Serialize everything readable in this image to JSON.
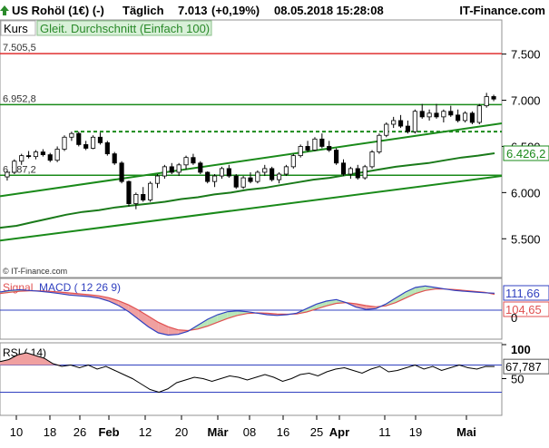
{
  "header": {
    "arrow_color": "#2a8a2a",
    "instrument": "US Rohöl (1€) (-)",
    "interval": "Täglich",
    "price": "7.013",
    "change": "(+0,19%)",
    "datetime": "08.05.2018 15:28:08",
    "brand": "IT-Finance.com"
  },
  "legend": {
    "kurs": "Kurs",
    "ma": "Gleit. Durchschnitt (Einfach 100)"
  },
  "watermark": "© IT-Finance.com",
  "price_labels": {
    "resistance": "7.505,5",
    "level_mid": "6.952,8",
    "level_low": "6.187,2"
  },
  "macd_legend": {
    "signal": "Signal",
    "macd": "MACD ( 12 26 9)"
  },
  "rsi_legend": "RSI ( 14)",
  "chart_data": [
    {
      "type": "candlestick",
      "title": "US Rohöl (1€) (-) Täglich",
      "y_axis_ticks": [
        "7.500",
        "7.000",
        "6.500",
        "6.000",
        "5.500"
      ],
      "y_range": [
        5100,
        7850
      ],
      "x_tick_labels": [
        "10",
        "18",
        "26",
        "Feb",
        "12",
        "20",
        "Mär",
        "08",
        "16",
        "25",
        "Apr",
        "11",
        "19",
        "Mai"
      ],
      "horizontal_levels": [
        {
          "value": 7505.5,
          "label": "7.505,5",
          "color": "#e03030"
        },
        {
          "value": 6952.8,
          "label": "6.952,8",
          "color": "#1a8a1a"
        },
        {
          "value": 6187.2,
          "label": "6.187,2",
          "color": "#1a8a1a"
        },
        {
          "value": 6660,
          "style": "dashed",
          "color": "#1a8a1a"
        }
      ],
      "trendlines": [
        {
          "from": 5960,
          "to": 6750,
          "color": "#1a8a1a"
        },
        {
          "from": 5480,
          "to": 6180,
          "color": "#1a8a1a"
        }
      ],
      "moving_average": {
        "name": "Gleit. Durchschnitt (Einfach 100)",
        "last_value": "6.426,2",
        "values": [
          5620,
          5640,
          5680,
          5720,
          5760,
          5790,
          5810,
          5840,
          5860,
          5880,
          5900,
          5930,
          5950,
          5980,
          6000,
          6030,
          6050,
          6080,
          6110,
          6140,
          6160,
          6190,
          6220,
          6250,
          6280,
          6300,
          6320,
          6350,
          6380,
          6400,
          6426
        ]
      },
      "candles": [
        [
          6170,
          6240,
          6130,
          6220
        ],
        [
          6220,
          6360,
          6200,
          6340
        ],
        [
          6340,
          6420,
          6300,
          6400
        ],
        [
          6400,
          6450,
          6370,
          6390
        ],
        [
          6390,
          6460,
          6360,
          6440
        ],
        [
          6440,
          6470,
          6390,
          6410
        ],
        [
          6410,
          6430,
          6330,
          6350
        ],
        [
          6350,
          6500,
          6330,
          6470
        ],
        [
          6470,
          6620,
          6450,
          6600
        ],
        [
          6600,
          6660,
          6560,
          6640
        ],
        [
          6640,
          6660,
          6500,
          6520
        ],
        [
          6520,
          6560,
          6460,
          6480
        ],
        [
          6480,
          6620,
          6470,
          6600
        ],
        [
          6600,
          6650,
          6520,
          6540
        ],
        [
          6540,
          6560,
          6400,
          6420
        ],
        [
          6420,
          6440,
          6300,
          6320
        ],
        [
          6320,
          6340,
          6100,
          6120
        ],
        [
          6120,
          6130,
          5850,
          5880
        ],
        [
          5880,
          6000,
          5820,
          5980
        ],
        [
          5980,
          6060,
          5900,
          5920
        ],
        [
          5920,
          6120,
          5900,
          6100
        ],
        [
          6100,
          6200,
          6050,
          6180
        ],
        [
          6180,
          6300,
          6150,
          6280
        ],
        [
          6280,
          6320,
          6200,
          6220
        ],
        [
          6220,
          6320,
          6180,
          6300
        ],
        [
          6300,
          6400,
          6250,
          6380
        ],
        [
          6380,
          6420,
          6300,
          6320
        ],
        [
          6320,
          6340,
          6200,
          6220
        ],
        [
          6220,
          6230,
          6100,
          6120
        ],
        [
          6120,
          6200,
          6060,
          6180
        ],
        [
          6180,
          6280,
          6150,
          6260
        ],
        [
          6260,
          6300,
          6160,
          6180
        ],
        [
          6180,
          6200,
          6040,
          6060
        ],
        [
          6060,
          6180,
          6040,
          6160
        ],
        [
          6160,
          6220,
          6100,
          6120
        ],
        [
          6120,
          6240,
          6100,
          6220
        ],
        [
          6220,
          6300,
          6180,
          6260
        ],
        [
          6260,
          6280,
          6120,
          6140
        ],
        [
          6140,
          6220,
          6100,
          6200
        ],
        [
          6200,
          6300,
          6180,
          6280
        ],
        [
          6280,
          6420,
          6260,
          6400
        ],
        [
          6400,
          6520,
          6380,
          6500
        ],
        [
          6500,
          6560,
          6440,
          6460
        ],
        [
          6460,
          6600,
          6450,
          6580
        ],
        [
          6580,
          6640,
          6480,
          6500
        ],
        [
          6500,
          6560,
          6440,
          6460
        ],
        [
          6460,
          6480,
          6300,
          6320
        ],
        [
          6320,
          6360,
          6180,
          6200
        ],
        [
          6200,
          6280,
          6150,
          6260
        ],
        [
          6260,
          6300,
          6140,
          6160
        ],
        [
          6160,
          6300,
          6140,
          6280
        ],
        [
          6280,
          6460,
          6260,
          6440
        ],
        [
          6440,
          6640,
          6420,
          6620
        ],
        [
          6620,
          6760,
          6600,
          6740
        ],
        [
          6740,
          6820,
          6700,
          6780
        ],
        [
          6780,
          6840,
          6700,
          6720
        ],
        [
          6720,
          6780,
          6640,
          6660
        ],
        [
          6660,
          6900,
          6640,
          6880
        ],
        [
          6880,
          6960,
          6800,
          6820
        ],
        [
          6820,
          6900,
          6780,
          6860
        ],
        [
          6860,
          6960,
          6800,
          6820
        ],
        [
          6820,
          6900,
          6760,
          6880
        ],
        [
          6880,
          6940,
          6820,
          6840
        ],
        [
          6840,
          6900,
          6760,
          6780
        ],
        [
          6780,
          6880,
          6760,
          6860
        ],
        [
          6860,
          6880,
          6740,
          6760
        ],
        [
          6760,
          6960,
          6740,
          6940
        ],
        [
          6940,
          7080,
          6920,
          7040
        ],
        [
          7040,
          7060,
          6990,
          7013
        ]
      ]
    },
    {
      "type": "line",
      "name": "MACD",
      "labels": [
        "Signal",
        "MACD ( 12 26 9)"
      ],
      "axis_labels": [
        "111,66",
        "104,65",
        "0"
      ],
      "macd": [
        120,
        130,
        135,
        130,
        125,
        118,
        110,
        100,
        95,
        90,
        80,
        60,
        30,
        -10,
        -60,
        -110,
        -150,
        -165,
        -160,
        -140,
        -100,
        -60,
        -30,
        -10,
        -5,
        -10,
        -20,
        -30,
        -35,
        -30,
        -20,
        10,
        40,
        60,
        70,
        50,
        20,
        5,
        10,
        40,
        80,
        120,
        150,
        160,
        150,
        140,
        130,
        125,
        120,
        115,
        112
      ],
      "signal": [
        110,
        118,
        125,
        128,
        128,
        125,
        120,
        114,
        108,
        102,
        95,
        82,
        62,
        35,
        0,
        -40,
        -80,
        -110,
        -130,
        -135,
        -125,
        -105,
        -80,
        -55,
        -35,
        -22,
        -18,
        -20,
        -25,
        -27,
        -25,
        -12,
        8,
        28,
        45,
        50,
        42,
        30,
        22,
        28,
        50,
        80,
        110,
        130,
        140,
        140,
        136,
        130,
        124,
        118,
        105
      ]
    },
    {
      "type": "line",
      "name": "RSI ( 14)",
      "y_axis_ticks": [
        "100",
        "50"
      ],
      "last_value": "67,787",
      "y_range": [
        0,
        100
      ],
      "levels": [
        70,
        30
      ],
      "values": [
        75,
        78,
        85,
        88,
        84,
        80,
        72,
        68,
        70,
        66,
        70,
        64,
        68,
        62,
        56,
        50,
        42,
        34,
        30,
        35,
        44,
        48,
        52,
        50,
        46,
        50,
        54,
        52,
        48,
        52,
        56,
        52,
        46,
        50,
        56,
        58,
        54,
        60,
        64,
        66,
        62,
        58,
        64,
        68,
        60,
        62,
        66,
        70,
        64,
        68,
        62,
        66,
        70,
        66,
        64,
        68,
        67.787
      ]
    }
  ]
}
